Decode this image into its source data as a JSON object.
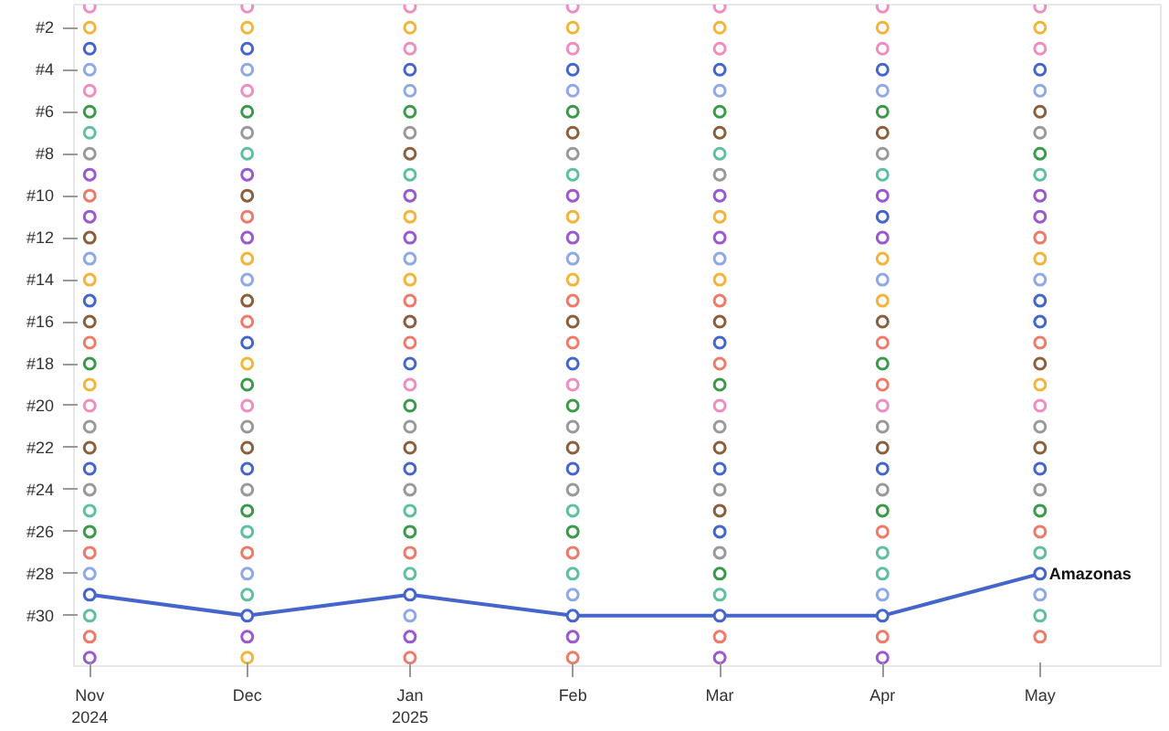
{
  "chart_data": {
    "type": "line",
    "x": [
      "2024-11",
      "2024-12",
      "2025-01",
      "2025-02",
      "2025-03",
      "2025-04",
      "2025-05"
    ],
    "xlim": [
      "2024-10-29",
      "2025-05-24"
    ],
    "ylim": [
      32.4,
      0.9
    ],
    "xticks": [
      {
        "value": "2024-11",
        "label": "Nov\n2024"
      },
      {
        "value": "2024-12",
        "label": "Dec"
      },
      {
        "value": "2025-01",
        "label": "Jan\n2025"
      },
      {
        "value": "2025-02",
        "label": "Feb"
      },
      {
        "value": "2025-03",
        "label": "Mar"
      },
      {
        "value": "2025-04",
        "label": "Apr"
      },
      {
        "value": "2025-05",
        "label": "May"
      }
    ],
    "yticks": [
      {
        "value": 2,
        "label": "#2"
      },
      {
        "value": 4,
        "label": "#4"
      },
      {
        "value": 6,
        "label": "#6"
      },
      {
        "value": 8,
        "label": "#8"
      },
      {
        "value": 10,
        "label": "#10"
      },
      {
        "value": 12,
        "label": "#12"
      },
      {
        "value": 14,
        "label": "#14"
      },
      {
        "value": 16,
        "label": "#16"
      },
      {
        "value": 18,
        "label": "#18"
      },
      {
        "value": 20,
        "label": "#20"
      },
      {
        "value": 22,
        "label": "#22"
      },
      {
        "value": 24,
        "label": "#24"
      },
      {
        "value": 26,
        "label": "#26"
      },
      {
        "value": 28,
        "label": "#28"
      },
      {
        "value": 30,
        "label": "#30"
      }
    ],
    "grid": false,
    "marker": "circle",
    "line_style": "solid",
    "series": [
      {
        "type": "scatter",
        "x": [
          "2024-11",
          "2024-11",
          "2024-11",
          "2024-11",
          "2024-11",
          "2024-11",
          "2024-11",
          "2024-11",
          "2024-11",
          "2024-11",
          "2024-11",
          "2024-11",
          "2024-11",
          "2024-11",
          "2024-11",
          "2024-11",
          "2024-11",
          "2024-11",
          "2024-11",
          "2024-11",
          "2024-11",
          "2024-11",
          "2024-11",
          "2024-11",
          "2024-11",
          "2024-11",
          "2024-11",
          "2024-11",
          "2024-11",
          "2024-11",
          "2024-11"
        ],
        "values": [
          1,
          2,
          3,
          4,
          5,
          6,
          7,
          8,
          9,
          10,
          11,
          12,
          13,
          14,
          15,
          16,
          17,
          18,
          19,
          20,
          21,
          22,
          23,
          24,
          25,
          26,
          27,
          28,
          30,
          31,
          32
        ],
        "colors": [
          "#f08cbf",
          "#f2b53a",
          "#4466cc",
          "#8fa8e8",
          "#f08cbf",
          "#3a9a4a",
          "#5fc0a0",
          "#999999",
          "#9b59d0",
          "#f07a6a",
          "#9b59d0",
          "#8b5e3c",
          "#8fa8e8",
          "#f2b53a",
          "#4466cc",
          "#8b5e3c",
          "#f07a6a",
          "#3a9a4a",
          "#f2b53a",
          "#f08cbf",
          "#999999",
          "#8b5e3c",
          "#4466cc",
          "#999999",
          "#5fc0a0",
          "#3a9a4a",
          "#f07a6a",
          "#8fa8e8",
          "#5fc0a0",
          "#f07a6a",
          "#9b59d0"
        ]
      },
      {
        "type": "scatter",
        "x": [
          "2024-12",
          "2024-12",
          "2024-12",
          "2024-12",
          "2024-12",
          "2024-12",
          "2024-12",
          "2024-12",
          "2024-12",
          "2024-12",
          "2024-12",
          "2024-12",
          "2024-12",
          "2024-12",
          "2024-12",
          "2024-12",
          "2024-12",
          "2024-12",
          "2024-12",
          "2024-12",
          "2024-12",
          "2024-12",
          "2024-12",
          "2024-12",
          "2024-12",
          "2024-12",
          "2024-12",
          "2024-12",
          "2024-12",
          "2024-12",
          "2024-12"
        ],
        "values": [
          1,
          2,
          3,
          4,
          5,
          6,
          7,
          8,
          9,
          10,
          11,
          12,
          13,
          14,
          15,
          16,
          17,
          18,
          19,
          20,
          21,
          22,
          23,
          24,
          25,
          26,
          27,
          28,
          29,
          31,
          32
        ],
        "colors": [
          "#f08cbf",
          "#f2b53a",
          "#4466cc",
          "#8fa8e8",
          "#f08cbf",
          "#3a9a4a",
          "#999999",
          "#5fc0a0",
          "#9b59d0",
          "#8b5e3c",
          "#f07a6a",
          "#9b59d0",
          "#f2b53a",
          "#8fa8e8",
          "#8b5e3c",
          "#f07a6a",
          "#4466cc",
          "#f2b53a",
          "#3a9a4a",
          "#f08cbf",
          "#999999",
          "#8b5e3c",
          "#4466cc",
          "#999999",
          "#3a9a4a",
          "#5fc0a0",
          "#f07a6a",
          "#8fa8e8",
          "#5fc0a0",
          "#9b59d0",
          "#f2b53a"
        ]
      },
      {
        "type": "scatter",
        "x": [
          "2025-01",
          "2025-01",
          "2025-01",
          "2025-01",
          "2025-01",
          "2025-01",
          "2025-01",
          "2025-01",
          "2025-01",
          "2025-01",
          "2025-01",
          "2025-01",
          "2025-01",
          "2025-01",
          "2025-01",
          "2025-01",
          "2025-01",
          "2025-01",
          "2025-01",
          "2025-01",
          "2025-01",
          "2025-01",
          "2025-01",
          "2025-01",
          "2025-01",
          "2025-01",
          "2025-01",
          "2025-01",
          "2025-01",
          "2025-01",
          "2025-01"
        ],
        "values": [
          1,
          2,
          3,
          4,
          5,
          6,
          7,
          8,
          9,
          10,
          11,
          12,
          13,
          14,
          15,
          16,
          17,
          18,
          19,
          20,
          21,
          22,
          23,
          24,
          25,
          26,
          27,
          28,
          30,
          31,
          32
        ],
        "colors": [
          "#f08cbf",
          "#f2b53a",
          "#f08cbf",
          "#4466cc",
          "#8fa8e8",
          "#3a9a4a",
          "#999999",
          "#8b5e3c",
          "#5fc0a0",
          "#9b59d0",
          "#f2b53a",
          "#9b59d0",
          "#8fa8e8",
          "#f2b53a",
          "#f07a6a",
          "#8b5e3c",
          "#f07a6a",
          "#4466cc",
          "#f08cbf",
          "#3a9a4a",
          "#999999",
          "#8b5e3c",
          "#4466cc",
          "#999999",
          "#5fc0a0",
          "#3a9a4a",
          "#f07a6a",
          "#5fc0a0",
          "#8fa8e8",
          "#9b59d0",
          "#f07a6a"
        ]
      },
      {
        "type": "scatter",
        "x": [
          "2025-02",
          "2025-02",
          "2025-02",
          "2025-02",
          "2025-02",
          "2025-02",
          "2025-02",
          "2025-02",
          "2025-02",
          "2025-02",
          "2025-02",
          "2025-02",
          "2025-02",
          "2025-02",
          "2025-02",
          "2025-02",
          "2025-02",
          "2025-02",
          "2025-02",
          "2025-02",
          "2025-02",
          "2025-02",
          "2025-02",
          "2025-02",
          "2025-02",
          "2025-02",
          "2025-02",
          "2025-02",
          "2025-02",
          "2025-02",
          "2025-02"
        ],
        "values": [
          1,
          2,
          3,
          4,
          5,
          6,
          7,
          8,
          9,
          10,
          11,
          12,
          13,
          14,
          15,
          16,
          17,
          18,
          19,
          20,
          21,
          22,
          23,
          24,
          25,
          26,
          27,
          28,
          29,
          31,
          32
        ],
        "colors": [
          "#f08cbf",
          "#f2b53a",
          "#f08cbf",
          "#4466cc",
          "#8fa8e8",
          "#3a9a4a",
          "#8b5e3c",
          "#999999",
          "#5fc0a0",
          "#9b59d0",
          "#f2b53a",
          "#9b59d0",
          "#8fa8e8",
          "#f2b53a",
          "#f07a6a",
          "#8b5e3c",
          "#f07a6a",
          "#4466cc",
          "#f08cbf",
          "#3a9a4a",
          "#999999",
          "#8b5e3c",
          "#4466cc",
          "#999999",
          "#5fc0a0",
          "#3a9a4a",
          "#f07a6a",
          "#5fc0a0",
          "#8fa8e8",
          "#9b59d0",
          "#f07a6a"
        ]
      },
      {
        "type": "scatter",
        "x": [
          "2025-03",
          "2025-03",
          "2025-03",
          "2025-03",
          "2025-03",
          "2025-03",
          "2025-03",
          "2025-03",
          "2025-03",
          "2025-03",
          "2025-03",
          "2025-03",
          "2025-03",
          "2025-03",
          "2025-03",
          "2025-03",
          "2025-03",
          "2025-03",
          "2025-03",
          "2025-03",
          "2025-03",
          "2025-03",
          "2025-03",
          "2025-03",
          "2025-03",
          "2025-03",
          "2025-03",
          "2025-03",
          "2025-03",
          "2025-03",
          "2025-03"
        ],
        "values": [
          1,
          2,
          3,
          4,
          5,
          6,
          7,
          8,
          9,
          10,
          11,
          12,
          13,
          14,
          15,
          16,
          17,
          18,
          19,
          20,
          21,
          22,
          23,
          24,
          25,
          26,
          27,
          28,
          29,
          31,
          32
        ],
        "colors": [
          "#f08cbf",
          "#f2b53a",
          "#f08cbf",
          "#4466cc",
          "#8fa8e8",
          "#3a9a4a",
          "#8b5e3c",
          "#5fc0a0",
          "#999999",
          "#9b59d0",
          "#f2b53a",
          "#9b59d0",
          "#8fa8e8",
          "#f2b53a",
          "#f07a6a",
          "#8b5e3c",
          "#4466cc",
          "#f07a6a",
          "#3a9a4a",
          "#f08cbf",
          "#999999",
          "#8b5e3c",
          "#4466cc",
          "#999999",
          "#8b5e3c",
          "#4466cc",
          "#999999",
          "#3a9a4a",
          "#5fc0a0",
          "#f07a6a",
          "#9b59d0"
        ]
      },
      {
        "type": "scatter",
        "x": [
          "2025-04",
          "2025-04",
          "2025-04",
          "2025-04",
          "2025-04",
          "2025-04",
          "2025-04",
          "2025-04",
          "2025-04",
          "2025-04",
          "2025-04",
          "2025-04",
          "2025-04",
          "2025-04",
          "2025-04",
          "2025-04",
          "2025-04",
          "2025-04",
          "2025-04",
          "2025-04",
          "2025-04",
          "2025-04",
          "2025-04",
          "2025-04",
          "2025-04",
          "2025-04",
          "2025-04",
          "2025-04",
          "2025-04",
          "2025-04",
          "2025-04"
        ],
        "values": [
          1,
          2,
          3,
          4,
          5,
          6,
          7,
          8,
          9,
          10,
          11,
          12,
          13,
          14,
          15,
          16,
          17,
          18,
          19,
          20,
          21,
          22,
          23,
          24,
          25,
          26,
          27,
          28,
          29,
          31,
          32
        ],
        "colors": [
          "#f08cbf",
          "#f2b53a",
          "#f08cbf",
          "#4466cc",
          "#8fa8e8",
          "#3a9a4a",
          "#8b5e3c",
          "#999999",
          "#5fc0a0",
          "#9b59d0",
          "#4466cc",
          "#9b59d0",
          "#f2b53a",
          "#8fa8e8",
          "#f2b53a",
          "#8b5e3c",
          "#f07a6a",
          "#3a9a4a",
          "#f07a6a",
          "#f08cbf",
          "#999999",
          "#8b5e3c",
          "#4466cc",
          "#999999",
          "#3a9a4a",
          "#f07a6a",
          "#5fc0a0",
          "#5fc0a0",
          "#8fa8e8",
          "#f07a6a",
          "#9b59d0"
        ]
      },
      {
        "type": "scatter",
        "x": [
          "2025-05",
          "2025-05",
          "2025-05",
          "2025-05",
          "2025-05",
          "2025-05",
          "2025-05",
          "2025-05",
          "2025-05",
          "2025-05",
          "2025-05",
          "2025-05",
          "2025-05",
          "2025-05",
          "2025-05",
          "2025-05",
          "2025-05",
          "2025-05",
          "2025-05",
          "2025-05",
          "2025-05",
          "2025-05",
          "2025-05",
          "2025-05",
          "2025-05",
          "2025-05",
          "2025-05",
          "2025-05",
          "2025-05",
          "2025-05"
        ],
        "values": [
          1,
          2,
          3,
          4,
          5,
          6,
          7,
          8,
          9,
          10,
          11,
          12,
          13,
          14,
          15,
          16,
          17,
          18,
          19,
          20,
          21,
          22,
          23,
          24,
          25,
          26,
          27,
          29,
          30,
          31
        ],
        "colors": [
          "#f08cbf",
          "#f2b53a",
          "#f08cbf",
          "#4466cc",
          "#8fa8e8",
          "#8b5e3c",
          "#999999",
          "#3a9a4a",
          "#5fc0a0",
          "#9b59d0",
          "#9b59d0",
          "#f07a6a",
          "#f2b53a",
          "#8fa8e8",
          "#4466cc",
          "#4466cc",
          "#f07a6a",
          "#8b5e3c",
          "#f2b53a",
          "#f08cbf",
          "#999999",
          "#8b5e3c",
          "#4466cc",
          "#999999",
          "#3a9a4a",
          "#f07a6a",
          "#5fc0a0",
          "#8fa8e8",
          "#5fc0a0",
          "#f07a6a"
        ]
      },
      {
        "name": "Amazonas",
        "color": "#4466cc",
        "values": [
          29,
          30,
          29,
          30,
          30,
          30,
          28
        ]
      }
    ]
  }
}
